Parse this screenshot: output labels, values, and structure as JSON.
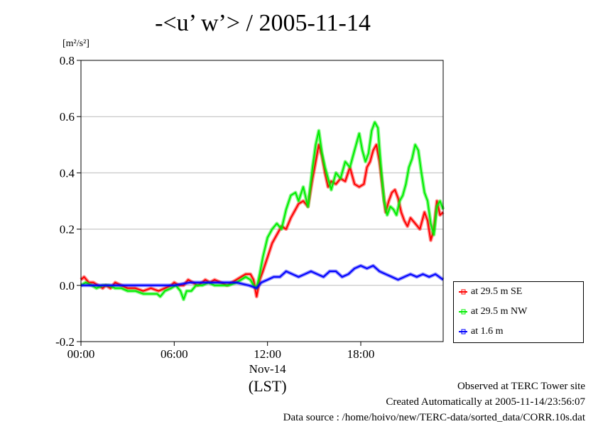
{
  "header": {
    "title": "-<u’ w’> / 2005-11-14",
    "units": "[m²/s²]"
  },
  "footer": {
    "line1": "Observed at TERC Tower site",
    "line2": "Created Automatically at 2005-11-14/23:56:07",
    "line3": "Data source : /home/hoivo/new/TERC-data/sorted_data/CORR.10s.dat"
  },
  "legend": {
    "items": [
      {
        "label": "at 29.5 m SE",
        "color": "#ff0000"
      },
      {
        "label": "at 29.5 m NW",
        "color": "#00ee00"
      },
      {
        "label": "at 1.6 m",
        "color": "#0000ff"
      }
    ]
  },
  "colors": {
    "grid": "#bbbbbb",
    "axis": "#000000"
  },
  "chart_data": {
    "type": "line",
    "title": "-<u’ w’> / 2005-11-14",
    "ylabel": "[m²/s²]",
    "xlabel": "Nov-14",
    "xlabel2": "(LST)",
    "xlim": [
      0,
      23.3
    ],
    "ylim": [
      -0.2,
      0.8
    ],
    "grid": true,
    "legend_position": "right",
    "x_ticks": [
      {
        "value": 0,
        "label": "00:00"
      },
      {
        "value": 6,
        "label": "06:00"
      },
      {
        "value": 12,
        "label": "12:00"
      },
      {
        "value": 18,
        "label": "18:00"
      }
    ],
    "y_ticks": [
      {
        "value": -0.2,
        "label": "-0.2"
      },
      {
        "value": 0.0,
        "label": "0.0"
      },
      {
        "value": 0.2,
        "label": "0.2"
      },
      {
        "value": 0.4,
        "label": "0.4"
      },
      {
        "value": 0.6,
        "label": "0.6"
      },
      {
        "value": 0.8,
        "label": "0.8"
      }
    ],
    "series": [
      {
        "name": "at 29.5 m SE",
        "color": "#ff0000",
        "points": [
          [
            0,
            0.02
          ],
          [
            0.2,
            0.03
          ],
          [
            0.5,
            0.01
          ],
          [
            0.8,
            0.01
          ],
          [
            1.1,
            0.0
          ],
          [
            1.4,
            -0.01
          ],
          [
            1.6,
            0.0
          ],
          [
            1.9,
            -0.01
          ],
          [
            2.2,
            0.01
          ],
          [
            2.6,
            0.0
          ],
          [
            3.0,
            -0.01
          ],
          [
            3.5,
            -0.01
          ],
          [
            4.0,
            -0.02
          ],
          [
            4.5,
            -0.01
          ],
          [
            5.0,
            -0.02
          ],
          [
            5.4,
            -0.01
          ],
          [
            5.8,
            0.0
          ],
          [
            6.0,
            0.01
          ],
          [
            6.3,
            0.0
          ],
          [
            6.6,
            0.0
          ],
          [
            6.9,
            0.02
          ],
          [
            7.2,
            0.01
          ],
          [
            7.5,
            0.0
          ],
          [
            7.8,
            0.01
          ],
          [
            8.0,
            0.02
          ],
          [
            8.3,
            0.01
          ],
          [
            8.6,
            0.02
          ],
          [
            9.0,
            0.01
          ],
          [
            9.4,
            0.0
          ],
          [
            9.7,
            0.01
          ],
          [
            10.0,
            0.02
          ],
          [
            10.3,
            0.03
          ],
          [
            10.6,
            0.04
          ],
          [
            10.9,
            0.04
          ],
          [
            11.1,
            0.02
          ],
          [
            11.3,
            -0.04
          ],
          [
            11.5,
            0.02
          ],
          [
            11.7,
            0.05
          ],
          [
            12.0,
            0.1
          ],
          [
            12.3,
            0.15
          ],
          [
            12.6,
            0.18
          ],
          [
            12.9,
            0.21
          ],
          [
            13.2,
            0.2
          ],
          [
            13.5,
            0.24
          ],
          [
            13.8,
            0.27
          ],
          [
            14.0,
            0.29
          ],
          [
            14.3,
            0.3
          ],
          [
            14.6,
            0.28
          ],
          [
            14.9,
            0.38
          ],
          [
            15.1,
            0.44
          ],
          [
            15.3,
            0.5
          ],
          [
            15.5,
            0.46
          ],
          [
            15.7,
            0.4
          ],
          [
            15.9,
            0.35
          ],
          [
            16.1,
            0.37
          ],
          [
            16.4,
            0.36
          ],
          [
            16.7,
            0.38
          ],
          [
            17.0,
            0.37
          ],
          [
            17.3,
            0.42
          ],
          [
            17.6,
            0.36
          ],
          [
            17.9,
            0.35
          ],
          [
            18.2,
            0.36
          ],
          [
            18.4,
            0.42
          ],
          [
            18.6,
            0.44
          ],
          [
            18.8,
            0.48
          ],
          [
            19.0,
            0.5
          ],
          [
            19.2,
            0.44
          ],
          [
            19.4,
            0.35
          ],
          [
            19.6,
            0.26
          ],
          [
            19.8,
            0.3
          ],
          [
            20.0,
            0.33
          ],
          [
            20.2,
            0.34
          ],
          [
            20.4,
            0.31
          ],
          [
            20.6,
            0.26
          ],
          [
            20.8,
            0.23
          ],
          [
            21.0,
            0.21
          ],
          [
            21.2,
            0.24
          ],
          [
            21.5,
            0.22
          ],
          [
            21.8,
            0.2
          ],
          [
            22.1,
            0.26
          ],
          [
            22.3,
            0.23
          ],
          [
            22.5,
            0.16
          ],
          [
            22.7,
            0.2
          ],
          [
            22.9,
            0.3
          ],
          [
            23.1,
            0.25
          ],
          [
            23.3,
            0.26
          ]
        ]
      },
      {
        "name": "at 29.5 m NW",
        "color": "#00ee00",
        "points": [
          [
            0,
            0.0
          ],
          [
            0.3,
            0.01
          ],
          [
            0.7,
            0.0
          ],
          [
            1.0,
            -0.01
          ],
          [
            1.4,
            0.0
          ],
          [
            1.8,
            0.0
          ],
          [
            2.2,
            -0.01
          ],
          [
            2.6,
            -0.01
          ],
          [
            3.0,
            -0.02
          ],
          [
            3.5,
            -0.02
          ],
          [
            4.0,
            -0.03
          ],
          [
            4.5,
            -0.03
          ],
          [
            4.9,
            -0.03
          ],
          [
            5.1,
            -0.04
          ],
          [
            5.4,
            -0.02
          ],
          [
            5.8,
            -0.01
          ],
          [
            6.1,
            0.0
          ],
          [
            6.4,
            -0.02
          ],
          [
            6.6,
            -0.05
          ],
          [
            6.8,
            -0.02
          ],
          [
            7.1,
            -0.02
          ],
          [
            7.4,
            0.0
          ],
          [
            7.8,
            0.0
          ],
          [
            8.2,
            0.01
          ],
          [
            8.6,
            0.0
          ],
          [
            9.0,
            0.0
          ],
          [
            9.5,
            0.0
          ],
          [
            10.0,
            0.01
          ],
          [
            10.3,
            0.02
          ],
          [
            10.6,
            0.03
          ],
          [
            10.9,
            0.02
          ],
          [
            11.1,
            0.0
          ],
          [
            11.3,
            -0.01
          ],
          [
            11.5,
            0.04
          ],
          [
            11.7,
            0.1
          ],
          [
            12.0,
            0.17
          ],
          [
            12.3,
            0.2
          ],
          [
            12.6,
            0.22
          ],
          [
            12.9,
            0.2
          ],
          [
            13.2,
            0.27
          ],
          [
            13.5,
            0.32
          ],
          [
            13.8,
            0.33
          ],
          [
            14.0,
            0.3
          ],
          [
            14.3,
            0.35
          ],
          [
            14.6,
            0.28
          ],
          [
            14.9,
            0.42
          ],
          [
            15.1,
            0.5
          ],
          [
            15.3,
            0.55
          ],
          [
            15.5,
            0.47
          ],
          [
            15.7,
            0.42
          ],
          [
            15.9,
            0.38
          ],
          [
            16.1,
            0.34
          ],
          [
            16.4,
            0.4
          ],
          [
            16.7,
            0.38
          ],
          [
            17.0,
            0.44
          ],
          [
            17.3,
            0.42
          ],
          [
            17.6,
            0.48
          ],
          [
            17.9,
            0.54
          ],
          [
            18.1,
            0.48
          ],
          [
            18.3,
            0.44
          ],
          [
            18.5,
            0.47
          ],
          [
            18.7,
            0.55
          ],
          [
            18.9,
            0.58
          ],
          [
            19.1,
            0.56
          ],
          [
            19.3,
            0.42
          ],
          [
            19.5,
            0.3
          ],
          [
            19.7,
            0.25
          ],
          [
            19.9,
            0.28
          ],
          [
            20.1,
            0.27
          ],
          [
            20.3,
            0.25
          ],
          [
            20.5,
            0.3
          ],
          [
            20.7,
            0.32
          ],
          [
            20.9,
            0.36
          ],
          [
            21.1,
            0.42
          ],
          [
            21.3,
            0.45
          ],
          [
            21.5,
            0.5
          ],
          [
            21.7,
            0.48
          ],
          [
            21.9,
            0.4
          ],
          [
            22.1,
            0.33
          ],
          [
            22.3,
            0.3
          ],
          [
            22.5,
            0.22
          ],
          [
            22.7,
            0.18
          ],
          [
            22.9,
            0.28
          ],
          [
            23.1,
            0.3
          ],
          [
            23.3,
            0.27
          ]
        ]
      },
      {
        "name": "at 1.6 m",
        "color": "#0000ff",
        "points": [
          [
            0,
            0.0
          ],
          [
            1,
            0.0
          ],
          [
            2,
            0.0
          ],
          [
            3,
            0.0
          ],
          [
            4,
            0.0
          ],
          [
            5,
            0.0
          ],
          [
            6,
            0.0
          ],
          [
            7,
            0.01
          ],
          [
            8,
            0.01
          ],
          [
            9,
            0.01
          ],
          [
            10,
            0.01
          ],
          [
            10.8,
            0.0
          ],
          [
            11.3,
            -0.01
          ],
          [
            11.6,
            0.01
          ],
          [
            12.0,
            0.02
          ],
          [
            12.4,
            0.03
          ],
          [
            12.8,
            0.03
          ],
          [
            13.2,
            0.05
          ],
          [
            13.6,
            0.04
          ],
          [
            14.0,
            0.03
          ],
          [
            14.4,
            0.04
          ],
          [
            14.8,
            0.05
          ],
          [
            15.2,
            0.04
          ],
          [
            15.6,
            0.03
          ],
          [
            16.0,
            0.05
          ],
          [
            16.4,
            0.05
          ],
          [
            16.8,
            0.03
          ],
          [
            17.2,
            0.04
          ],
          [
            17.6,
            0.06
          ],
          [
            18.0,
            0.07
          ],
          [
            18.4,
            0.06
          ],
          [
            18.8,
            0.07
          ],
          [
            19.2,
            0.05
          ],
          [
            19.6,
            0.04
          ],
          [
            20.0,
            0.03
          ],
          [
            20.4,
            0.02
          ],
          [
            20.8,
            0.03
          ],
          [
            21.2,
            0.04
          ],
          [
            21.6,
            0.03
          ],
          [
            22.0,
            0.04
          ],
          [
            22.4,
            0.03
          ],
          [
            22.8,
            0.04
          ],
          [
            23.3,
            0.02
          ]
        ]
      }
    ]
  }
}
